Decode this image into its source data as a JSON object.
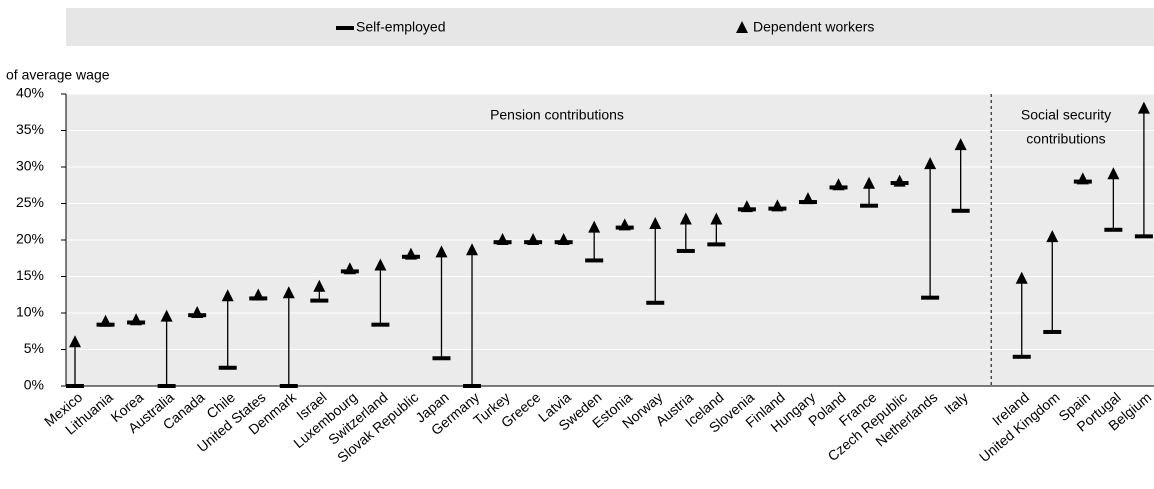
{
  "chart_data": {
    "type": "dumbbell",
    "y_label": "of average wage",
    "annotations": [
      {
        "lines": [
          "Pension contributions"
        ]
      },
      {
        "lines": [
          "Social security",
          "contributions"
        ]
      }
    ],
    "categories": [
      "Mexico",
      "Lithuania",
      "Korea",
      "Australia",
      "Canada",
      "Chile",
      "United States",
      "Denmark",
      "Israel",
      "Luxembourg",
      "Switzerland",
      "Slovak Republic",
      "Japan",
      "Germany",
      "Turkey",
      "Greece",
      "Latvia",
      "Sweden",
      "Estonia",
      "Norway",
      "Austria",
      "Iceland",
      "Slovenia",
      "Finland",
      "Hungary",
      "Poland",
      "France",
      "Czech Republic",
      "Netherlands",
      "Italy",
      "Ireland",
      "United Kingdom",
      "Spain",
      "Portugal",
      "Belgium"
    ],
    "series": [
      {
        "name": "Self-employed",
        "color": "#000000",
        "marker": "dash",
        "values": [
          0,
          8.4,
          8.7,
          0,
          9.7,
          2.5,
          12.0,
          0,
          11.7,
          15.7,
          8.4,
          17.7,
          3.8,
          0,
          19.7,
          19.7,
          19.7,
          17.2,
          21.7,
          11.4,
          18.5,
          19.4,
          24.2,
          24.3,
          25.2,
          27.2,
          24.7,
          27.8,
          12.1,
          24.0,
          4.0,
          7.4,
          28.0,
          21.4,
          20.5
        ]
      },
      {
        "name": "Dependent workers",
        "color": "#000000",
        "marker": "triangle",
        "values": [
          6.0,
          8.8,
          9.0,
          9.5,
          10.0,
          12.3,
          12.4,
          12.7,
          13.6,
          16.0,
          16.5,
          18.0,
          18.3,
          18.6,
          20.0,
          20.0,
          20.0,
          21.7,
          22.0,
          22.2,
          22.8,
          22.8,
          24.5,
          24.6,
          25.6,
          27.5,
          27.7,
          28.0,
          30.4,
          33.0,
          14.7,
          20.4,
          28.3,
          29.0,
          38.0
        ]
      }
    ],
    "ylim": [
      0,
      40
    ],
    "yticks": [
      {
        "value": 0,
        "label": "0%"
      },
      {
        "value": 5,
        "label": "5%"
      },
      {
        "value": 10,
        "label": "10%"
      },
      {
        "value": 15,
        "label": "15%"
      },
      {
        "value": 20,
        "label": "20%"
      },
      {
        "value": 25,
        "label": "25%"
      },
      {
        "value": 30,
        "label": "30%"
      },
      {
        "value": 35,
        "label": "35%"
      },
      {
        "value": 40,
        "label": "40%"
      }
    ],
    "grid": true,
    "legend": "top"
  }
}
